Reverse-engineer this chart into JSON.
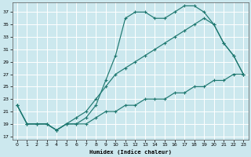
{
  "xlabel": "Humidex (Indice chaleur)",
  "bg_color": "#cce8ee",
  "grid_color": "#b0d8e0",
  "line_color": "#1e7870",
  "xlim": [
    -0.5,
    23.5
  ],
  "ylim": [
    16.5,
    38.5
  ],
  "yticks": [
    17,
    19,
    21,
    23,
    25,
    27,
    29,
    31,
    33,
    35,
    37
  ],
  "xticks": [
    0,
    1,
    2,
    3,
    4,
    5,
    6,
    7,
    8,
    9,
    10,
    11,
    12,
    13,
    14,
    15,
    16,
    17,
    18,
    19,
    20,
    21,
    22,
    23
  ],
  "line1_x": [
    0,
    1,
    2,
    3,
    4,
    5,
    6,
    7,
    8,
    9,
    10,
    11,
    12,
    13,
    14,
    15,
    16,
    17,
    18,
    19,
    20,
    21,
    22,
    23
  ],
  "line1_y": [
    22,
    19,
    19,
    19,
    18,
    19,
    19,
    20,
    22,
    26,
    30,
    36,
    37,
    37,
    36,
    36,
    37,
    38,
    38,
    37,
    35,
    32,
    30,
    27
  ],
  "line2_x": [
    0,
    1,
    2,
    3,
    4,
    5,
    6,
    7,
    8,
    9,
    10,
    11,
    12,
    13,
    14,
    15,
    16,
    17,
    18,
    19,
    20,
    21,
    22,
    23
  ],
  "line2_y": [
    22,
    19,
    19,
    19,
    18,
    19,
    20,
    21,
    23,
    25,
    27,
    28,
    29,
    30,
    31,
    32,
    33,
    34,
    35,
    36,
    35,
    32,
    30,
    27
  ],
  "line3_x": [
    0,
    1,
    2,
    3,
    4,
    5,
    6,
    7,
    8,
    9,
    10,
    11,
    12,
    13,
    14,
    15,
    16,
    17,
    18,
    19,
    20,
    21,
    22,
    23
  ],
  "line3_y": [
    22,
    19,
    19,
    19,
    18,
    19,
    19,
    19,
    20,
    21,
    21,
    22,
    22,
    23,
    23,
    23,
    24,
    24,
    25,
    25,
    26,
    26,
    27,
    27
  ]
}
